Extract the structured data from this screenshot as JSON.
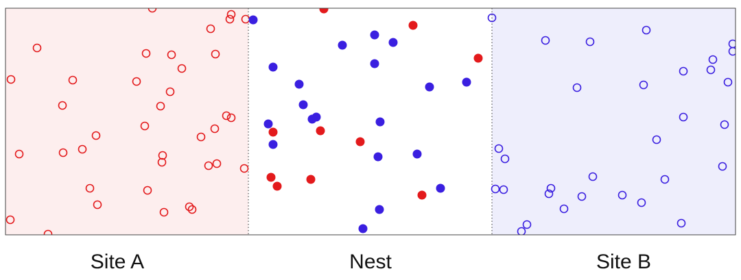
{
  "labels": {
    "left": "Site A",
    "center": "Nest",
    "right": "Site B"
  }
}
